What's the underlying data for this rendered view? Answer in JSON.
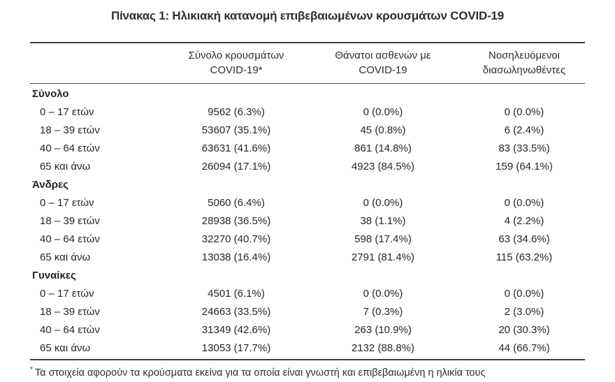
{
  "chart_data": {
    "type": "table",
    "title": "Πίνακας 1: Ηλικιακή κατανομή επιβεβαιωμένων κρουσμάτων COVID-19",
    "header": [
      {
        "line1": "",
        "line2": ""
      },
      {
        "line1": "Σύνολο κρουσμάτων",
        "line2": "COVID-19*"
      },
      {
        "line1": "Θάνατοι ασθενών με",
        "line2": "COVID-19"
      },
      {
        "line1": "Νοσηλευόμενοι",
        "line2": "διασωληνωθέντες"
      }
    ],
    "sections": [
      {
        "name": "Σύνολο",
        "rows": [
          {
            "age": "0 – 17 ετών",
            "cases": "9562 (6.3%)",
            "deaths": "0 (0.0%)",
            "intubated": "0 (0.0%)"
          },
          {
            "age": "18 – 39 ετών",
            "cases": "53607 (35.1%)",
            "deaths": "45 (0.8%)",
            "intubated": "6 (2.4%)"
          },
          {
            "age": "40 – 64 ετών",
            "cases": "63631 (41.6%)",
            "deaths": "861 (14.8%)",
            "intubated": "83 (33.5%)"
          },
          {
            "age": "65 και άνω",
            "cases": "26094 (17.1%)",
            "deaths": "4923 (84.5%)",
            "intubated": "159 (64.1%)"
          }
        ]
      },
      {
        "name": "Άνδρες",
        "rows": [
          {
            "age": "0 – 17 ετών",
            "cases": "5060 (6.4%)",
            "deaths": "0 (0.0%)",
            "intubated": "0 (0.0%)"
          },
          {
            "age": "18 – 39 ετών",
            "cases": "28938 (36.5%)",
            "deaths": "38 (1.1%)",
            "intubated": "4 (2.2%)"
          },
          {
            "age": "40 – 64 ετών",
            "cases": "32270 (40.7%)",
            "deaths": "598 (17.4%)",
            "intubated": "63 (34.6%)"
          },
          {
            "age": "65 και άνω",
            "cases": "13038 (16.4%)",
            "deaths": "2791 (81.4%)",
            "intubated": "115 (63.2%)"
          }
        ]
      },
      {
        "name": "Γυναίκες",
        "rows": [
          {
            "age": "0 – 17 ετών",
            "cases": "4501 (6.1%)",
            "deaths": "0 (0.0%)",
            "intubated": "0 (0.0%)"
          },
          {
            "age": "18 – 39 ετών",
            "cases": "24663 (33.5%)",
            "deaths": "7 (0.3%)",
            "intubated": "2 (3.0%)"
          },
          {
            "age": "40 – 64 ετών",
            "cases": "31349 (42.6%)",
            "deaths": "263 (10.9%)",
            "intubated": "20 (30.3%)"
          },
          {
            "age": "65 και άνω",
            "cases": "13053 (17.7%)",
            "deaths": "2132 (88.8%)",
            "intubated": "44 (66.7%)"
          }
        ]
      }
    ],
    "footnote": {
      "marker": "*",
      "text": "Τα στοιχεία αφορούν τα κρούσματα εκείνα για τα οποία είναι γνωστή και επιβεβαιωμένη η ηλικία τους"
    },
    "layout": {
      "grid": "off",
      "legend": "none",
      "column_alignment": [
        "left",
        "center",
        "center",
        "center"
      ]
    },
    "colors": {
      "text": "#262626",
      "rule": "#3d3d3d",
      "background": "#ffffff"
    }
  }
}
